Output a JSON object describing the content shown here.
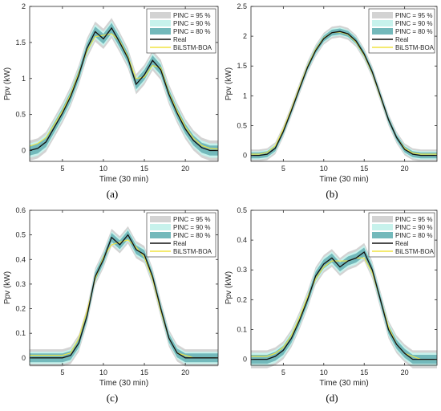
{
  "colors": {
    "pinc95": "#d3d3d3",
    "pinc90": "#c7f2ec",
    "pinc80": "#73b9bb",
    "real": "#111111",
    "bilstm": "#f0e442"
  },
  "chart_data": [
    {
      "type": "line",
      "caption": "(a)",
      "xlabel": "Time (30 min)",
      "ylabel": "Ppv (kW)",
      "xlim": [
        1,
        24
      ],
      "ylim": [
        -0.15,
        2
      ],
      "xticks": [
        "5",
        "10",
        "15",
        "20"
      ],
      "yticks": [
        "0",
        "0.5",
        "1",
        "1.5",
        "2"
      ],
      "legend": [
        "PINC = 95 %",
        "PINC = 90 %",
        "PINC = 80 %",
        "Real",
        "BiLSTM-BOA"
      ],
      "x": [
        1,
        2,
        3,
        4,
        5,
        6,
        7,
        8,
        9,
        10,
        11,
        12,
        13,
        14,
        15,
        16,
        17,
        18,
        19,
        20,
        21,
        22,
        23,
        24
      ],
      "series": [
        {
          "name": "Real",
          "values": [
            0.0,
            0.03,
            0.12,
            0.32,
            0.52,
            0.75,
            1.05,
            1.42,
            1.65,
            1.55,
            1.7,
            1.5,
            1.28,
            0.92,
            1.05,
            1.25,
            1.12,
            0.78,
            0.52,
            0.3,
            0.14,
            0.04,
            0.0,
            0.0
          ]
        },
        {
          "name": "BiLSTM-BOA",
          "values": [
            0.06,
            0.1,
            0.18,
            0.36,
            0.55,
            0.78,
            1.08,
            1.38,
            1.58,
            1.6,
            1.62,
            1.52,
            1.3,
            1.0,
            1.02,
            1.18,
            1.15,
            0.8,
            0.55,
            0.33,
            0.17,
            0.07,
            0.03,
            0.02
          ]
        }
      ],
      "band_halfwidths": {
        "PINC = 95 %": 0.14,
        "PINC = 90 %": 0.1,
        "PINC = 80 %": 0.07
      }
    },
    {
      "type": "line",
      "caption": "(b)",
      "xlabel": "Time (30 min)",
      "ylabel": "Ppv (kW)",
      "xlim": [
        1,
        24
      ],
      "ylim": [
        -0.1,
        2.5
      ],
      "xticks": [
        "5",
        "10",
        "15",
        "20"
      ],
      "yticks": [
        "0",
        "0.5",
        "1",
        "1.5",
        "2",
        "2.5"
      ],
      "legend": [
        "PINC = 95 %",
        "PINC = 90 %",
        "PINC = 80 %",
        "Real",
        "BiLSTM-BOA"
      ],
      "x": [
        1,
        2,
        3,
        4,
        5,
        6,
        7,
        8,
        9,
        10,
        11,
        12,
        13,
        14,
        15,
        16,
        17,
        18,
        19,
        20,
        21,
        22,
        23,
        24
      ],
      "series": [
        {
          "name": "Real",
          "values": [
            0.0,
            0.0,
            0.02,
            0.12,
            0.4,
            0.75,
            1.12,
            1.48,
            1.76,
            1.96,
            2.06,
            2.08,
            2.04,
            1.92,
            1.7,
            1.4,
            1.0,
            0.6,
            0.3,
            0.1,
            0.02,
            0.0,
            0.0,
            0.0
          ]
        },
        {
          "name": "BiLSTM-BOA",
          "values": [
            0.02,
            0.02,
            0.05,
            0.16,
            0.44,
            0.78,
            1.15,
            1.5,
            1.78,
            1.97,
            2.06,
            2.07,
            2.03,
            1.9,
            1.68,
            1.38,
            0.98,
            0.6,
            0.3,
            0.12,
            0.04,
            0.02,
            0.02,
            0.02
          ]
        }
      ],
      "band_halfwidths": {
        "PINC = 95 %": 0.1,
        "PINC = 90 %": 0.07,
        "PINC = 80 %": 0.05
      }
    },
    {
      "type": "line",
      "caption": "(c)",
      "xlabel": "Time (30 min)",
      "ylabel": "Ppv (kW)",
      "xlim": [
        1,
        24
      ],
      "ylim": [
        -0.03,
        0.6
      ],
      "xticks": [
        "5",
        "10",
        "15",
        "20"
      ],
      "yticks": [
        "0",
        "0.1",
        "0.2",
        "0.3",
        "0.4",
        "0.5",
        "0.6"
      ],
      "legend": [
        "PINC = 95 %",
        "PINC = 90 %",
        "PINC = 80 %",
        "Real",
        "BiLSTM-BOA"
      ],
      "x": [
        1,
        2,
        3,
        4,
        5,
        6,
        7,
        8,
        9,
        10,
        11,
        12,
        13,
        14,
        15,
        16,
        17,
        18,
        19,
        20,
        21,
        22,
        23,
        24
      ],
      "series": [
        {
          "name": "Real",
          "values": [
            0.0,
            0.0,
            0.0,
            0.0,
            0.0,
            0.01,
            0.06,
            0.17,
            0.33,
            0.4,
            0.49,
            0.46,
            0.5,
            0.44,
            0.42,
            0.33,
            0.2,
            0.08,
            0.02,
            0.0,
            0.0,
            0.0,
            0.0,
            0.0
          ]
        },
        {
          "name": "BiLSTM-BOA",
          "values": [
            0.01,
            0.01,
            0.01,
            0.01,
            0.01,
            0.02,
            0.08,
            0.19,
            0.32,
            0.41,
            0.46,
            0.47,
            0.48,
            0.45,
            0.41,
            0.32,
            0.19,
            0.08,
            0.02,
            0.01,
            0.0,
            0.0,
            0.0,
            0.0
          ]
        }
      ],
      "band_halfwidths": {
        "PINC = 95 %": 0.035,
        "PINC = 90 %": 0.025,
        "PINC = 80 %": 0.018
      }
    },
    {
      "type": "line",
      "caption": "(d)",
      "xlabel": "Time (30 min)",
      "ylabel": "Ppv (kW)",
      "xlim": [
        1,
        24
      ],
      "ylim": [
        -0.02,
        0.5
      ],
      "xticks": [
        "5",
        "10",
        "15",
        "20"
      ],
      "yticks": [
        "0",
        "0.1",
        "0.2",
        "0.3",
        "0.4",
        "0.5"
      ],
      "legend": [
        "PINC = 95 %",
        "PINC = 90 %",
        "PINC = 80 %",
        "Real",
        "BiLSTM-BOA"
      ],
      "x": [
        1,
        2,
        3,
        4,
        5,
        6,
        7,
        8,
        9,
        10,
        11,
        12,
        13,
        14,
        15,
        16,
        17,
        18,
        19,
        20,
        21,
        22,
        23,
        24
      ],
      "series": [
        {
          "name": "Real",
          "values": [
            0.0,
            0.0,
            0.0,
            0.01,
            0.03,
            0.07,
            0.13,
            0.2,
            0.28,
            0.32,
            0.34,
            0.31,
            0.33,
            0.34,
            0.36,
            0.3,
            0.2,
            0.1,
            0.05,
            0.02,
            0.0,
            0.0,
            0.0,
            0.0
          ]
        },
        {
          "name": "BiLSTM-BOA",
          "values": [
            0.01,
            0.01,
            0.01,
            0.02,
            0.04,
            0.08,
            0.14,
            0.21,
            0.27,
            0.31,
            0.33,
            0.33,
            0.33,
            0.34,
            0.34,
            0.29,
            0.2,
            0.11,
            0.05,
            0.02,
            0.01,
            0.0,
            0.0,
            0.0
          ]
        }
      ],
      "band_halfwidths": {
        "PINC = 95 %": 0.03,
        "PINC = 90 %": 0.022,
        "PINC = 80 %": 0.015
      }
    }
  ]
}
